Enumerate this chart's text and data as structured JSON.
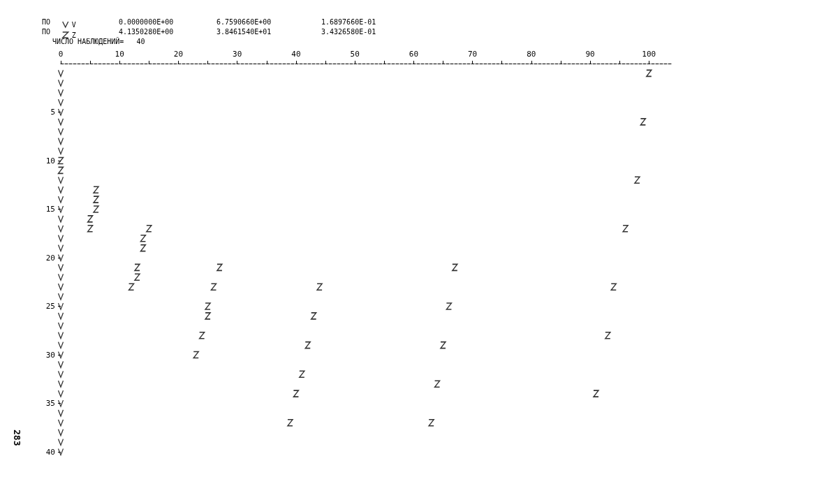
{
  "chart_data": {
    "type": "scatter",
    "annotations": [
      "ПО",
      "0.0000000E+00",
      "6.7590660E+00",
      "1.6897660E-01",
      "ПО",
      "4.1350280E+00",
      "3.8461540E+01",
      "3.4326580E-01",
      "ЧИСЛО НАБЛЮДЕНИЙ=   40",
      "283"
    ],
    "series": [
      {
        "name": "V",
        "color": "#000000",
        "x": [
          0,
          0,
          0,
          0,
          0,
          0,
          0,
          0,
          0,
          0,
          0,
          0,
          0,
          0,
          0,
          0,
          0,
          0,
          0,
          0,
          0,
          0,
          0,
          0,
          0,
          0,
          0,
          0,
          0,
          0,
          0,
          0,
          0,
          0,
          0,
          0,
          0,
          0
        ],
        "values": [
          1,
          2,
          3,
          4,
          5,
          6,
          7,
          8,
          9,
          12,
          13,
          14,
          15,
          16,
          17,
          18,
          19,
          20,
          21,
          22,
          23,
          24,
          25,
          26,
          27,
          28,
          29,
          30,
          31,
          32,
          33,
          34,
          35,
          36,
          37,
          38,
          39,
          40
        ]
      },
      {
        "name": "Z",
        "color": "#000000",
        "x": [
          100,
          99,
          0,
          0,
          98,
          6,
          6,
          6,
          5,
          5,
          15,
          96,
          14,
          14,
          13,
          27,
          67,
          13,
          12,
          26,
          44,
          94,
          25,
          66,
          25,
          43,
          24,
          93,
          42,
          65,
          23,
          41,
          64,
          40,
          91,
          39,
          63
        ],
        "values": [
          1,
          6,
          10,
          11,
          12,
          13,
          14,
          15,
          16,
          17,
          17,
          17,
          18,
          19,
          21,
          21,
          21,
          22,
          23,
          23,
          23,
          23,
          25,
          25,
          26,
          26,
          28,
          28,
          29,
          29,
          30,
          32,
          33,
          34,
          34,
          37,
          37
        ]
      }
    ],
    "xlim": [
      0,
      104
    ],
    "xticks": [
      0,
      {
        "value": 5,
        "label": null
      },
      10,
      {
        "value": 15,
        "label": null
      },
      20,
      {
        "value": 25,
        "label": null
      },
      30,
      {
        "value": 35,
        "label": null
      },
      40,
      {
        "value": 45,
        "label": null
      },
      50,
      {
        "value": 55,
        "label": null
      },
      60,
      {
        "value": 65,
        "label": null
      },
      70,
      {
        "value": 75,
        "label": null
      },
      80,
      {
        "value": 85,
        "label": null
      },
      90,
      {
        "value": 95,
        "label": null
      },
      100
    ],
    "ylim": [
      40,
      0
    ],
    "yticks": [
      5,
      10,
      15,
      20,
      25,
      30,
      35,
      40
    ],
    "grid": false,
    "legend": "top left"
  }
}
